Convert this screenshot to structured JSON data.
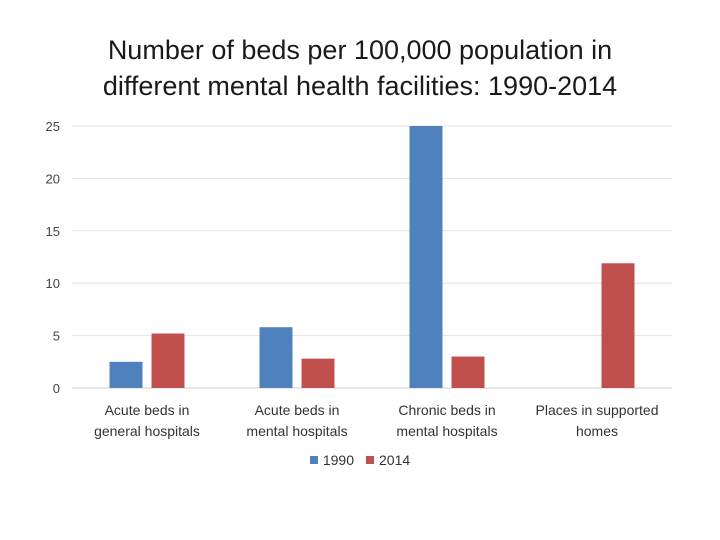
{
  "chart_data": {
    "type": "bar",
    "title_lines": [
      "Number of beds per 100,000 population in",
      "different mental health facilities: 1990-2014"
    ],
    "categories": [
      [
        "Acute beds in",
        "general hospitals"
      ],
      [
        "Acute beds in",
        "mental hospitals"
      ],
      [
        "Chronic beds in",
        "mental hospitals"
      ],
      [
        "Places in supported",
        "homes"
      ]
    ],
    "series": [
      {
        "name": "1990",
        "color": "#4f81bd",
        "values": [
          2.5,
          5.8,
          25,
          0
        ]
      },
      {
        "name": "2014",
        "color": "#c0504d",
        "values": [
          5.2,
          2.8,
          3.0,
          11.9
        ]
      }
    ],
    "ylim": [
      0,
      25
    ],
    "yticks": [
      "0",
      "5",
      "10",
      "15",
      "20",
      "25"
    ],
    "grid": true,
    "legend_position": "bottom",
    "xlabel": "",
    "ylabel": ""
  }
}
